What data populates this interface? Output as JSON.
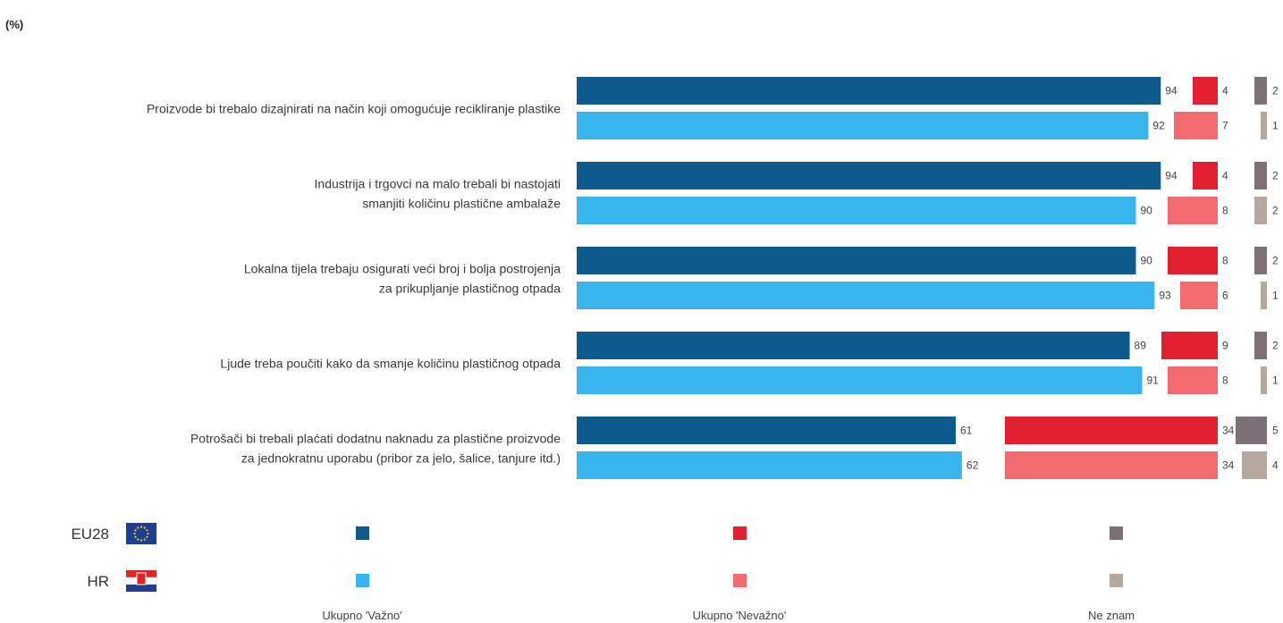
{
  "unit_label": "(%)",
  "colors": {
    "EU28": {
      "important": "#0f5a8c",
      "not_important": "#e3202f",
      "dont_know": "#7d7177"
    },
    "HR": {
      "important": "#39b5ee",
      "not_important": "#f26b6e",
      "dont_know": "#b6a89f"
    }
  },
  "legend": {
    "groups": [
      "EU28",
      "HR"
    ],
    "flags": {
      "EU28": "eu-flag-icon",
      "HR": "croatia-flag-icon"
    },
    "categories": [
      "Ukupno 'Važno'",
      "Ukupno 'Nevažno'",
      "Ne znam"
    ]
  },
  "chart_data": {
    "type": "bar",
    "orientation": "horizontal",
    "stacked": false,
    "categories": [
      [
        "Proizvode bi trebalo dizajnirati na način koji omogućuje recikliranje plastike"
      ],
      [
        "Industrija i trgovci na malo trebali bi nastojati",
        "smanjiti količinu plastične ambalaže"
      ],
      [
        "Lokalna tijela trebaju osigurati veći broj i bolja postrojenja",
        "za prikupljanje plastičnog otpada"
      ],
      [
        "Ljude treba poučiti kako da smanje količinu plastičnog otpada"
      ],
      [
        "Potrošači bi trebali plaćati dodatnu naknadu za plastične proizvode",
        "za jednokratnu uporabu (pribor za jelo, šalice, tanjure itd.)"
      ]
    ],
    "groups": [
      "EU28",
      "HR"
    ],
    "measures": [
      "Ukupno 'Važno'",
      "Ukupno 'Nevažno'",
      "Ne znam"
    ],
    "values": {
      "EU28": {
        "Ukupno 'Važno'": [
          94,
          94,
          90,
          89,
          61
        ],
        "Ukupno 'Nevažno'": [
          4,
          4,
          8,
          9,
          34
        ],
        "Ne znam": [
          2,
          2,
          2,
          2,
          5
        ]
      },
      "HR": {
        "Ukupno 'Važno'": [
          92,
          90,
          93,
          91,
          62
        ],
        "Ukupno 'Nevažno'": [
          7,
          8,
          6,
          8,
          34
        ],
        "Ne znam": [
          1,
          2,
          1,
          1,
          4
        ]
      }
    },
    "xlim": [
      0,
      100
    ],
    "grid": false,
    "legend_position": "bottom"
  }
}
